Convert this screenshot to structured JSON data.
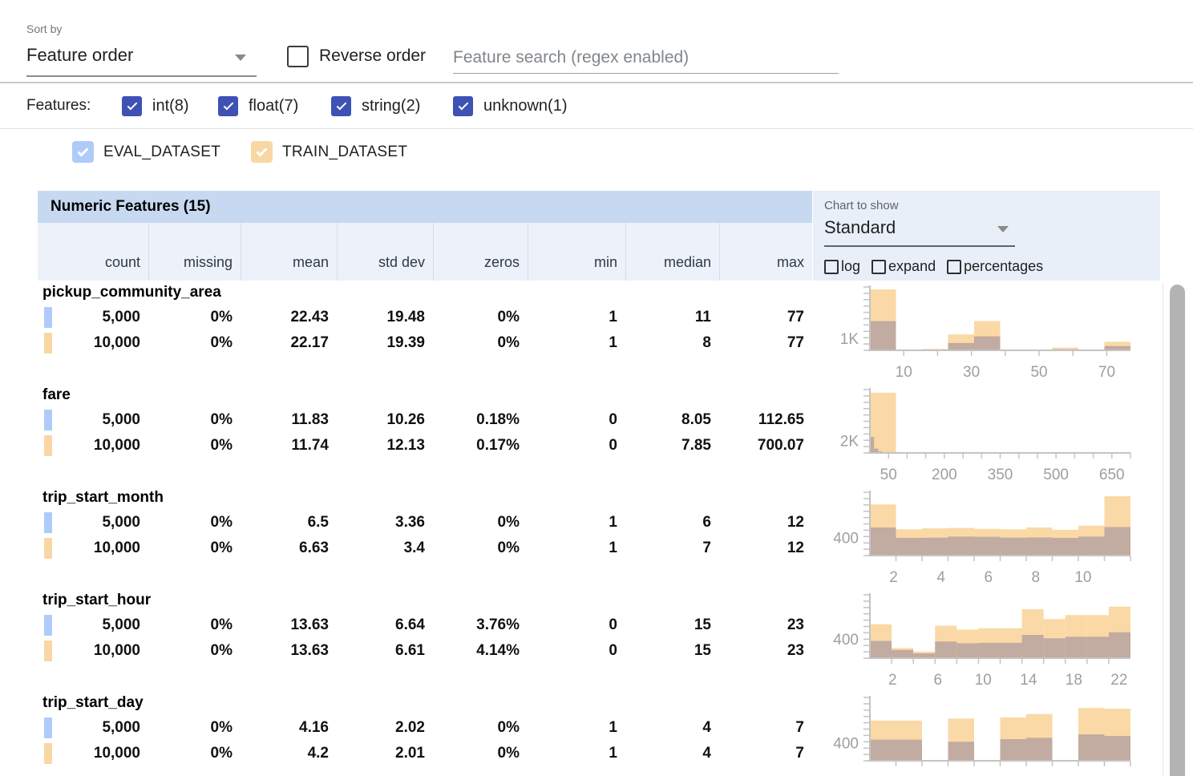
{
  "toolbar": {
    "sort_by_label": "Sort by",
    "sort_by_value": "Feature order",
    "reverse_order_label": "Reverse order",
    "search_placeholder": "Feature search (regex enabled)"
  },
  "features_filter": {
    "label": "Features:",
    "items": [
      {
        "label": "int(8)",
        "checked": true
      },
      {
        "label": "float(7)",
        "checked": true
      },
      {
        "label": "string(2)",
        "checked": true
      },
      {
        "label": "unknown(1)",
        "checked": true
      }
    ]
  },
  "dataset_legend": {
    "items": [
      {
        "label": "EVAL_DATASET",
        "color": "#aecbfa",
        "checked": true
      },
      {
        "label": "TRAIN_DATASET",
        "color": "#f9d7a4",
        "checked": true
      }
    ]
  },
  "section": {
    "title": "Numeric Features (15)"
  },
  "chart_controls": {
    "label": "Chart to show",
    "selected": "Standard",
    "toggles": [
      {
        "label": "log",
        "checked": false
      },
      {
        "label": "expand",
        "checked": false
      },
      {
        "label": "percentages",
        "checked": false
      }
    ]
  },
  "table": {
    "columns": [
      "count",
      "missing",
      "mean",
      "std dev",
      "zeros",
      "min",
      "median",
      "max"
    ],
    "features": [
      {
        "name": "pickup_community_area",
        "rows": [
          {
            "dataset": "EVAL_DATASET",
            "values": [
              "5,000",
              "0%",
              "22.43",
              "19.48",
              "0%",
              "1",
              "11",
              "77"
            ]
          },
          {
            "dataset": "TRAIN_DATASET",
            "values": [
              "10,000",
              "0%",
              "22.17",
              "19.39",
              "0%",
              "1",
              "8",
              "77"
            ]
          }
        ]
      },
      {
        "name": "fare",
        "rows": [
          {
            "dataset": "EVAL_DATASET",
            "values": [
              "5,000",
              "0%",
              "11.83",
              "10.26",
              "0.18%",
              "0",
              "8.05",
              "112.65"
            ]
          },
          {
            "dataset": "TRAIN_DATASET",
            "values": [
              "10,000",
              "0%",
              "11.74",
              "12.13",
              "0.17%",
              "0",
              "7.85",
              "700.07"
            ]
          }
        ]
      },
      {
        "name": "trip_start_month",
        "rows": [
          {
            "dataset": "EVAL_DATASET",
            "values": [
              "5,000",
              "0%",
              "6.5",
              "3.36",
              "0%",
              "1",
              "6",
              "12"
            ]
          },
          {
            "dataset": "TRAIN_DATASET",
            "values": [
              "10,000",
              "0%",
              "6.63",
              "3.4",
              "0%",
              "1",
              "7",
              "12"
            ]
          }
        ]
      },
      {
        "name": "trip_start_hour",
        "rows": [
          {
            "dataset": "EVAL_DATASET",
            "values": [
              "5,000",
              "0%",
              "13.63",
              "6.64",
              "3.76%",
              "0",
              "15",
              "23"
            ]
          },
          {
            "dataset": "TRAIN_DATASET",
            "values": [
              "10,000",
              "0%",
              "13.63",
              "6.61",
              "4.14%",
              "0",
              "15",
              "23"
            ]
          }
        ]
      },
      {
        "name": "trip_start_day",
        "rows": [
          {
            "dataset": "EVAL_DATASET",
            "values": [
              "5,000",
              "0%",
              "4.16",
              "2.02",
              "0%",
              "1",
              "4",
              "7"
            ]
          },
          {
            "dataset": "TRAIN_DATASET",
            "values": [
              "10,000",
              "0%",
              "4.2",
              "2.01",
              "0%",
              "1",
              "4",
              "7"
            ]
          }
        ]
      }
    ]
  },
  "chart_data": [
    {
      "feature": "pickup_community_area",
      "type": "histogram",
      "x_domain": [
        0,
        77
      ],
      "x_ticks_labeled": [
        10,
        30,
        50,
        70
      ],
      "x_tick_step": 10,
      "y_axis_label": "1K",
      "y_label_value": 1000,
      "y_max": 5200,
      "series": [
        {
          "name": "TRAIN_DATASET",
          "start": 0,
          "bucket_width": 7.7,
          "values": [
            5000,
            40,
            120,
            1300,
            2400,
            25,
            25,
            220,
            40,
            700
          ]
        },
        {
          "name": "EVAL_DATASET",
          "start": 0,
          "bucket_width": 7.7,
          "values": [
            2400,
            15,
            50,
            600,
            1150,
            10,
            10,
            90,
            15,
            350
          ]
        }
      ]
    },
    {
      "feature": "fare",
      "type": "histogram",
      "x_domain": [
        0,
        700
      ],
      "x_ticks_labeled": [
        50,
        200,
        350,
        500,
        650
      ],
      "x_tick_step": 50,
      "y_axis_label": "2K",
      "y_label_value": 2000,
      "y_max": 10300,
      "series": [
        {
          "name": "TRAIN_DATASET",
          "start": 0,
          "bucket_width": 70,
          "values": [
            9800,
            120,
            40,
            15,
            8,
            5,
            3,
            2,
            1,
            3
          ]
        },
        {
          "name": "EVAL_DATASET",
          "start": 0,
          "bucket_width": 11.3,
          "values": [
            2600,
            700,
            250,
            120,
            60,
            30,
            15,
            8,
            4,
            2
          ]
        }
      ]
    },
    {
      "feature": "trip_start_month",
      "type": "histogram",
      "x_domain": [
        1,
        12
      ],
      "x_ticks_labeled": [
        2,
        4,
        6,
        8,
        10
      ],
      "x_tick_step": 1.1,
      "y_axis_label": "400",
      "y_label_value": 400,
      "y_max": 1400,
      "series": [
        {
          "name": "TRAIN_DATASET",
          "start": 1,
          "bucket_width": 1.1,
          "values": [
            1130,
            580,
            600,
            610,
            590,
            580,
            620,
            570,
            660,
            1310
          ]
        },
        {
          "name": "EVAL_DATASET",
          "start": 1,
          "bucket_width": 1.1,
          "values": [
            620,
            390,
            395,
            420,
            415,
            395,
            400,
            390,
            420,
            630
          ]
        }
      ]
    },
    {
      "feature": "trip_start_hour",
      "type": "histogram",
      "x_domain": [
        0,
        23
      ],
      "x_ticks_labeled": [
        2,
        6,
        10,
        14,
        18,
        22
      ],
      "x_tick_step": 1.9167,
      "y_axis_label": "400",
      "y_label_value": 400,
      "y_max": 1330,
      "series": [
        {
          "name": "TRAIN_DATASET",
          "start": 0,
          "bucket_width": 1.9167,
          "values": [
            712,
            212,
            138,
            683,
            600,
            628,
            628,
            1028,
            822,
            905,
            905,
            1083
          ]
        },
        {
          "name": "EVAL_DATASET",
          "start": 0,
          "bucket_width": 1.9167,
          "values": [
            362,
            172,
            100,
            350,
            312,
            322,
            322,
            488,
            417,
            450,
            450,
            545
          ]
        }
      ]
    },
    {
      "feature": "trip_start_day",
      "type": "histogram",
      "x_domain": [
        1,
        7
      ],
      "x_ticks_labeled": [],
      "x_tick_step": 0.6,
      "y_axis_label": "400",
      "y_label_value": 400,
      "y_max": 1390,
      "series": [
        {
          "name": "TRAIN_DATASET",
          "start": 1,
          "bucket_width": 0.6,
          "values": [
            882,
            882,
            0,
            927,
            0,
            951,
            1026,
            0,
            1160,
            1143
          ]
        },
        {
          "name": "EVAL_DATASET",
          "start": 1,
          "bucket_width": 0.6,
          "values": [
            464,
            464,
            0,
            417,
            0,
            475,
            504,
            0,
            579,
            544
          ]
        }
      ]
    }
  ],
  "colors": {
    "filter_checkbox": "#3e51b5",
    "eval_swatch": "#aecbfa",
    "train_swatch": "#f9d7a4",
    "train_bar": "#fad9a6",
    "overlap_bar": "#c2aba0",
    "section_header_bg": "#c7d9f1",
    "column_header_bg": "#edf1f9",
    "chart_panel_bg": "#e9eff9",
    "axis_gray": "#c4c4c4",
    "tick_text_gray": "#9e9e9e"
  }
}
